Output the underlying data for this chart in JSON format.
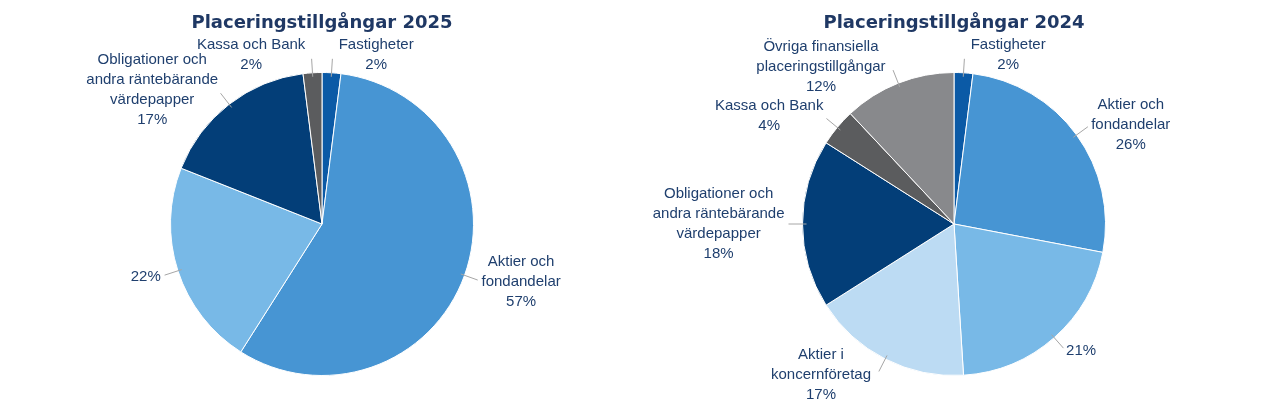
{
  "chart_data": [
    {
      "type": "pie",
      "title": "Placeringstillgångar 2025",
      "categories": [
        "Fastigheter",
        "Aktier och fondandelar",
        null,
        "Obligationer och andra räntebärande värdepapper",
        "Kassa och Bank"
      ],
      "values": [
        2,
        57,
        22,
        17,
        2
      ],
      "colors": [
        "#0b5aa6",
        "#4795d3",
        "#78b9e7",
        "#033e78",
        "#5b5c5e"
      ],
      "value_labels": [
        "2%",
        "57%",
        "22%",
        "17%",
        "2%"
      ]
    },
    {
      "type": "pie",
      "title": "Placeringstillgångar 2024",
      "categories": [
        "Fastigheter",
        "Aktier och fondandelar",
        null,
        "Aktier i koncernföretag",
        "Obligationer och andra räntebärande värdepapper",
        "Kassa och Bank",
        "Övriga finansiella placeringstillgångar"
      ],
      "values": [
        2,
        26,
        21,
        17,
        18,
        4,
        12
      ],
      "colors": [
        "#0b5aa6",
        "#4795d3",
        "#78b9e7",
        "#bcdbf3",
        "#033e78",
        "#5b5c5e",
        "#88898c"
      ],
      "value_labels": [
        "2%",
        "26%",
        "21%",
        "17%",
        "18%",
        "4%",
        "12%"
      ]
    }
  ]
}
